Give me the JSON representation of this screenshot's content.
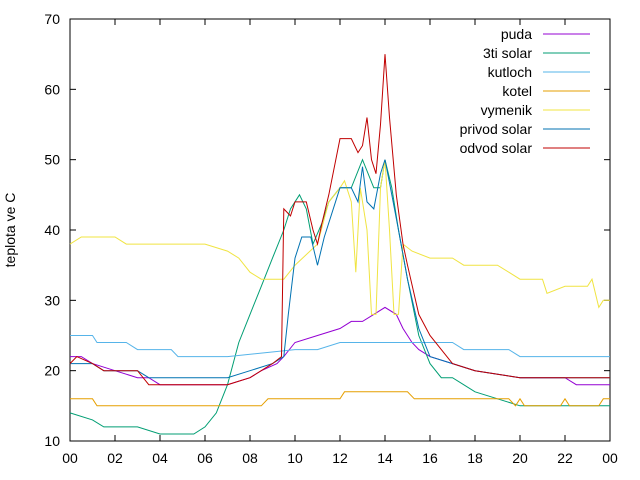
{
  "chart_data": {
    "type": "line",
    "ylabel": "teplota ve C",
    "xlabel": "",
    "xlim": [
      0,
      24
    ],
    "ylim": [
      10,
      70
    ],
    "xticks": [
      "00",
      "02",
      "04",
      "06",
      "08",
      "10",
      "12",
      "14",
      "16",
      "18",
      "20",
      "22",
      "00"
    ],
    "yticks": [
      "10",
      "20",
      "30",
      "40",
      "50",
      "60",
      "70"
    ],
    "legend_position": "top-right",
    "grid": false,
    "series": [
      {
        "name": "puda",
        "color": "#9400d3",
        "points": [
          [
            0,
            22
          ],
          [
            0.5,
            22
          ],
          [
            1,
            21
          ],
          [
            2,
            20
          ],
          [
            3,
            19
          ],
          [
            3.5,
            19
          ],
          [
            4,
            18
          ],
          [
            6,
            18
          ],
          [
            7,
            18
          ],
          [
            8,
            19
          ],
          [
            8.5,
            20
          ],
          [
            9.2,
            21
          ],
          [
            9.5,
            22
          ],
          [
            10,
            24
          ],
          [
            11,
            25
          ],
          [
            12,
            26
          ],
          [
            12.5,
            27
          ],
          [
            13,
            27
          ],
          [
            13.5,
            28
          ],
          [
            14,
            29
          ],
          [
            14.5,
            28
          ],
          [
            14.8,
            26
          ],
          [
            15.2,
            24
          ],
          [
            15.5,
            23
          ],
          [
            16,
            22
          ],
          [
            17,
            21
          ],
          [
            18,
            20
          ],
          [
            20,
            19
          ],
          [
            22,
            19
          ],
          [
            22.5,
            18
          ],
          [
            24,
            18
          ]
        ]
      },
      {
        "name": "3ti solar",
        "color": "#009e73",
        "points": [
          [
            0,
            14
          ],
          [
            1,
            13
          ],
          [
            1.5,
            12
          ],
          [
            3,
            12
          ],
          [
            4,
            11
          ],
          [
            5.5,
            11
          ],
          [
            6,
            12
          ],
          [
            6.5,
            14
          ],
          [
            7,
            18
          ],
          [
            7.5,
            24
          ],
          [
            8,
            28
          ],
          [
            8.5,
            32
          ],
          [
            9,
            36
          ],
          [
            9.5,
            40
          ],
          [
            9.8,
            43
          ],
          [
            10.2,
            45
          ],
          [
            10.5,
            43
          ],
          [
            10.8,
            38
          ],
          [
            11.2,
            41
          ],
          [
            11.5,
            44
          ],
          [
            12,
            46
          ],
          [
            12.5,
            46
          ],
          [
            13,
            50
          ],
          [
            13.5,
            46
          ],
          [
            13.8,
            46
          ],
          [
            14,
            50
          ],
          [
            14.3,
            46
          ],
          [
            14.6,
            40
          ],
          [
            15,
            33
          ],
          [
            15.5,
            25
          ],
          [
            16,
            21
          ],
          [
            16.5,
            19
          ],
          [
            17,
            19
          ],
          [
            18,
            17
          ],
          [
            19,
            16
          ],
          [
            20,
            15
          ],
          [
            24,
            15
          ]
        ]
      },
      {
        "name": "kutloch",
        "color": "#56b4e9",
        "points": [
          [
            0,
            25
          ],
          [
            1,
            25
          ],
          [
            1.2,
            24
          ],
          [
            2.5,
            24
          ],
          [
            3,
            23
          ],
          [
            4.5,
            23
          ],
          [
            4.8,
            22
          ],
          [
            7,
            22
          ],
          [
            10,
            23
          ],
          [
            11,
            23
          ],
          [
            12,
            24
          ],
          [
            17,
            24
          ],
          [
            17.5,
            23
          ],
          [
            19.5,
            23
          ],
          [
            20,
            22
          ],
          [
            24,
            22
          ]
        ]
      },
      {
        "name": "kotel",
        "color": "#e69f00",
        "points": [
          [
            0,
            16
          ],
          [
            1,
            16
          ],
          [
            1.2,
            15
          ],
          [
            8.5,
            15
          ],
          [
            8.8,
            16
          ],
          [
            12,
            16
          ],
          [
            12.2,
            17
          ],
          [
            15,
            17
          ],
          [
            15.3,
            16
          ],
          [
            19.5,
            16
          ],
          [
            19.8,
            15
          ],
          [
            20,
            16
          ],
          [
            20.2,
            15
          ],
          [
            21.8,
            15
          ],
          [
            22,
            16
          ],
          [
            22.2,
            15
          ],
          [
            23.5,
            15
          ],
          [
            23.7,
            16
          ],
          [
            24,
            16
          ]
        ]
      },
      {
        "name": "vymenik",
        "color": "#f0e442",
        "points": [
          [
            0,
            38
          ],
          [
            0.5,
            39
          ],
          [
            2,
            39
          ],
          [
            2.5,
            38
          ],
          [
            6,
            38
          ],
          [
            7,
            37
          ],
          [
            7.5,
            36
          ],
          [
            8,
            34
          ],
          [
            8.5,
            33
          ],
          [
            9.5,
            33
          ],
          [
            10,
            35
          ],
          [
            11,
            38
          ],
          [
            11.5,
            44
          ],
          [
            12,
            46
          ],
          [
            12.2,
            47
          ],
          [
            12.5,
            44
          ],
          [
            12.7,
            34
          ],
          [
            12.9,
            46
          ],
          [
            13.2,
            40
          ],
          [
            13.4,
            28
          ],
          [
            13.6,
            28
          ],
          [
            13.8,
            46
          ],
          [
            14,
            50
          ],
          [
            14.2,
            40
          ],
          [
            14.4,
            28
          ],
          [
            14.6,
            28
          ],
          [
            14.8,
            38
          ],
          [
            15.2,
            37
          ],
          [
            16,
            36
          ],
          [
            17,
            36
          ],
          [
            17.5,
            35
          ],
          [
            19,
            35
          ],
          [
            19.5,
            34
          ],
          [
            20,
            33
          ],
          [
            21,
            33
          ],
          [
            21.2,
            31
          ],
          [
            22,
            32
          ],
          [
            23,
            32
          ],
          [
            23.2,
            33
          ],
          [
            23.5,
            29
          ],
          [
            23.7,
            30
          ],
          [
            24,
            30
          ]
        ]
      },
      {
        "name": "privod solar",
        "color": "#0072b2",
        "points": [
          [
            0,
            21
          ],
          [
            1,
            21
          ],
          [
            1.5,
            20
          ],
          [
            3,
            20
          ],
          [
            3.5,
            19
          ],
          [
            6,
            19
          ],
          [
            7,
            19
          ],
          [
            8,
            20
          ],
          [
            9,
            21
          ],
          [
            9.5,
            22
          ],
          [
            9.7,
            28
          ],
          [
            10,
            36
          ],
          [
            10.3,
            39
          ],
          [
            10.7,
            39
          ],
          [
            11,
            35
          ],
          [
            11.3,
            39
          ],
          [
            12,
            46
          ],
          [
            12.5,
            46
          ],
          [
            12.8,
            44
          ],
          [
            13,
            49
          ],
          [
            13.2,
            44
          ],
          [
            13.5,
            43
          ],
          [
            13.8,
            48
          ],
          [
            14,
            50
          ],
          [
            14.3,
            45
          ],
          [
            14.6,
            40
          ],
          [
            15,
            33
          ],
          [
            15.5,
            26
          ],
          [
            16,
            22
          ],
          [
            17,
            21
          ],
          [
            18,
            20
          ],
          [
            20,
            19
          ],
          [
            24,
            19
          ]
        ]
      },
      {
        "name": "odvod solar",
        "color": "#c00000",
        "points": [
          [
            0,
            21
          ],
          [
            0.3,
            22
          ],
          [
            1,
            21
          ],
          [
            1.5,
            20
          ],
          [
            3,
            20
          ],
          [
            3.5,
            18
          ],
          [
            6,
            18
          ],
          [
            7,
            18
          ],
          [
            8,
            19
          ],
          [
            9,
            21
          ],
          [
            9.4,
            22
          ],
          [
            9.5,
            43
          ],
          [
            9.8,
            42
          ],
          [
            10,
            44
          ],
          [
            10.5,
            44
          ],
          [
            10.8,
            40
          ],
          [
            11,
            38
          ],
          [
            11.2,
            41
          ],
          [
            11.5,
            45
          ],
          [
            12,
            53
          ],
          [
            12.5,
            53
          ],
          [
            12.8,
            51
          ],
          [
            13,
            52
          ],
          [
            13.2,
            56
          ],
          [
            13.4,
            50
          ],
          [
            13.6,
            48
          ],
          [
            13.8,
            55
          ],
          [
            14,
            65
          ],
          [
            14.2,
            56
          ],
          [
            14.5,
            45
          ],
          [
            14.8,
            38
          ],
          [
            15,
            35
          ],
          [
            15.5,
            28
          ],
          [
            16,
            25
          ],
          [
            16.5,
            23
          ],
          [
            17,
            21
          ],
          [
            18,
            20
          ],
          [
            20,
            19
          ],
          [
            24,
            19
          ]
        ]
      }
    ]
  }
}
